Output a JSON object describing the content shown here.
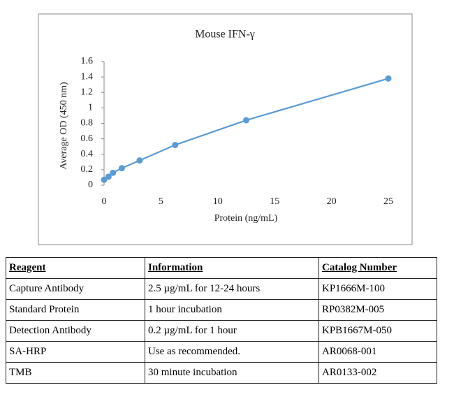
{
  "chart_data": {
    "type": "line",
    "title": "Mouse IFN-γ",
    "x_label": "Protein (ng/mL)",
    "y_label": "Average OD (450 nm)",
    "x": [
      0,
      0.39,
      0.78,
      1.56,
      3.13,
      6.25,
      12.5,
      25
    ],
    "series": [
      {
        "color": "#5b9bd5",
        "values": [
          0.07,
          0.11,
          0.16,
          0.22,
          0.32,
          0.52,
          0.84,
          1.38
        ]
      }
    ],
    "xlim": [
      0,
      25
    ],
    "xticks": [
      0,
      5,
      10,
      15,
      20,
      25
    ],
    "ylim": [
      0,
      1.6
    ],
    "yticks": [
      0,
      0.2,
      0.4,
      0.6,
      0.8,
      1,
      1.2,
      1.4,
      1.6
    ],
    "grid": false
  },
  "table": {
    "header": [
      "Reagent",
      "Information",
      "Catalog Number"
    ],
    "rows": [
      [
        "Capture Antibody",
        "2.5 µg/mL for 12-24 hours",
        "KP1666M-100"
      ],
      [
        "Standard Protein",
        "1 hour incubation",
        "RP0382M-005"
      ],
      [
        "Detection Antibody",
        "0.2 µg/mL for 1 hour",
        "KPB1667M-050"
      ],
      [
        "SA-HRP",
        "Use as recommended.",
        "AR0068-001"
      ],
      [
        "TMB",
        "30 minute incubation",
        "AR0133-002"
      ]
    ]
  }
}
